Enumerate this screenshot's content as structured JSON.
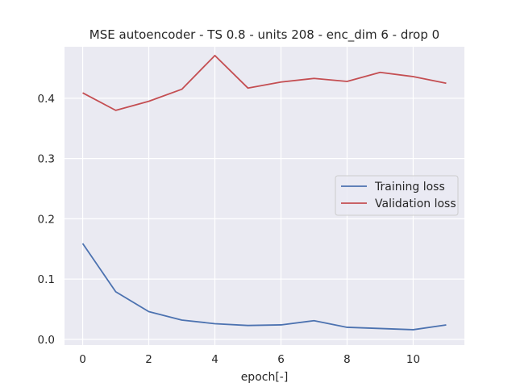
{
  "chart_data": {
    "type": "line",
    "title": "MSE autoencoder - TS 0.8 - units 208 - enc_dim 6 - drop 0",
    "xlabel": "epoch[-]",
    "ylabel": "",
    "xlim": [
      -0.55,
      11.55
    ],
    "ylim": [
      -0.0095,
      0.4855
    ],
    "x": [
      0,
      1,
      2,
      3,
      4,
      5,
      6,
      7,
      8,
      9,
      10,
      11
    ],
    "xticks": [
      0,
      2,
      4,
      6,
      8,
      10
    ],
    "yticks": [
      0.0,
      0.1,
      0.2,
      0.3,
      0.4
    ],
    "ytick_labels": [
      "0.0",
      "0.1",
      "0.2",
      "0.3",
      "0.4"
    ],
    "grid": true,
    "legend_position": "center-right",
    "series": [
      {
        "name": "Training loss",
        "color": "#4c72b0",
        "values": [
          0.159,
          0.079,
          0.046,
          0.032,
          0.026,
          0.023,
          0.024,
          0.031,
          0.02,
          0.018,
          0.016,
          0.024
        ]
      },
      {
        "name": "Validation loss",
        "color": "#c44e52",
        "values": [
          0.409,
          0.38,
          0.395,
          0.415,
          0.471,
          0.417,
          0.427,
          0.433,
          0.428,
          0.443,
          0.436,
          0.425
        ]
      }
    ],
    "background_color": "#eaeaf2",
    "grid_color": "#ffffff"
  }
}
